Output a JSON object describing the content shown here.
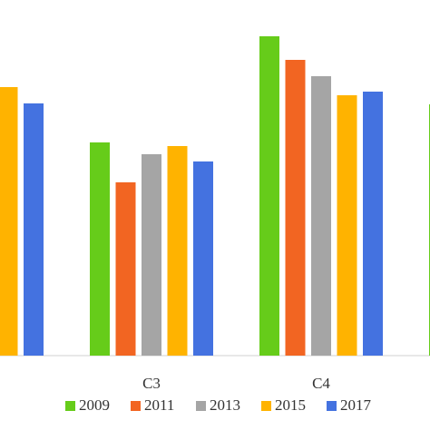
{
  "chart_data": {
    "type": "bar",
    "categories": [
      null,
      "C3",
      "C4",
      null
    ],
    "ylim": [
      0,
      362
    ],
    "series": [
      {
        "name": "2009",
        "color": "#66cc1a",
        "values": [
          null,
          235,
          352,
          277
        ]
      },
      {
        "name": "2011",
        "color": "#f26522",
        "values": [
          null,
          191,
          326,
          null
        ]
      },
      {
        "name": "2013",
        "color": "#a5a5a5",
        "values": [
          null,
          222,
          308,
          null
        ]
      },
      {
        "name": "2015",
        "color": "#ffb300",
        "values": [
          296,
          231,
          287,
          null
        ]
      },
      {
        "name": "2017",
        "color": "#4472e0",
        "values": [
          278,
          214,
          291,
          null
        ]
      }
    ]
  }
}
